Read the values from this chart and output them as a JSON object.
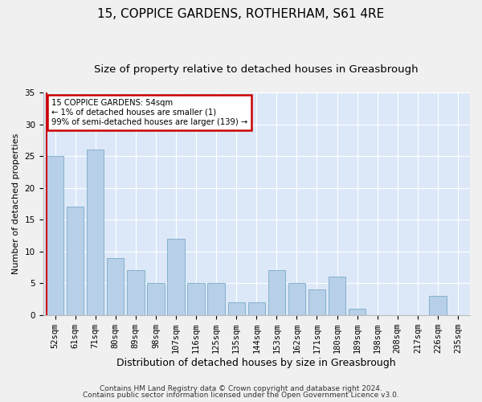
{
  "title": "15, COPPICE GARDENS, ROTHERHAM, S61 4RE",
  "subtitle": "Size of property relative to detached houses in Greasbrough",
  "xlabel": "Distribution of detached houses by size in Greasbrough",
  "ylabel": "Number of detached properties",
  "categories": [
    "52sqm",
    "61sqm",
    "71sqm",
    "80sqm",
    "89sqm",
    "98sqm",
    "107sqm",
    "116sqm",
    "125sqm",
    "135sqm",
    "144sqm",
    "153sqm",
    "162sqm",
    "171sqm",
    "180sqm",
    "189sqm",
    "198sqm",
    "208sqm",
    "217sqm",
    "226sqm",
    "235sqm"
  ],
  "values": [
    25,
    17,
    26,
    9,
    7,
    5,
    12,
    5,
    5,
    2,
    2,
    7,
    5,
    4,
    6,
    1,
    0,
    0,
    0,
    3,
    0
  ],
  "bar_color": "#b8cfe8",
  "bar_edge_color": "#7aaac8",
  "highlight_color": "#cc0000",
  "annotation_line1": "15 COPPICE GARDENS: 54sqm",
  "annotation_line2": "← 1% of detached houses are smaller (1)",
  "annotation_line3": "99% of semi-detached houses are larger (139) →",
  "annotation_box_color": "#cc0000",
  "ylim": [
    0,
    35
  ],
  "yticks": [
    0,
    5,
    10,
    15,
    20,
    25,
    30,
    35
  ],
  "background_color": "#dce8f8",
  "grid_color": "#ffffff",
  "footer_line1": "Contains HM Land Registry data © Crown copyright and database right 2024.",
  "footer_line2": "Contains public sector information licensed under the Open Government Licence v3.0.",
  "title_fontsize": 11,
  "subtitle_fontsize": 9.5,
  "xlabel_fontsize": 9,
  "ylabel_fontsize": 8,
  "tick_fontsize": 7.5,
  "footer_fontsize": 6.5
}
